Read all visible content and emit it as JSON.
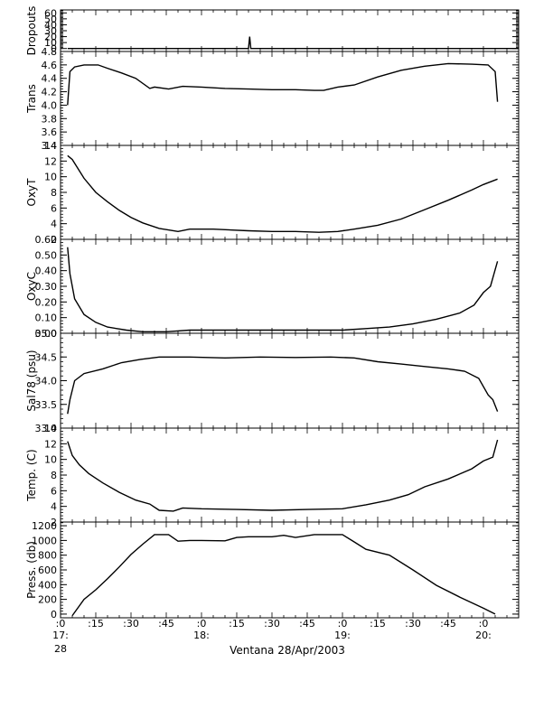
{
  "figure": {
    "x_title": "Ventana 28/Apr/2003"
  },
  "x_axis": {
    "range_minutes": [
      0,
      195
    ],
    "minor_step": 5,
    "ticks": [
      {
        "t": 0,
        "label": ":0"
      },
      {
        "t": 15,
        "label": ":15"
      },
      {
        "t": 30,
        "label": ":30"
      },
      {
        "t": 45,
        "label": ":45"
      },
      {
        "t": 60,
        "label": ":0"
      },
      {
        "t": 75,
        "label": ":15"
      },
      {
        "t": 90,
        "label": ":30"
      },
      {
        "t": 105,
        "label": ":45"
      },
      {
        "t": 120,
        "label": ":0"
      },
      {
        "t": 135,
        "label": ":15"
      },
      {
        "t": 150,
        "label": ":30"
      },
      {
        "t": 165,
        "label": ":45"
      },
      {
        "t": 180,
        "label": ":0"
      }
    ],
    "hour_labels": [
      {
        "t": 0,
        "label": "17:"
      },
      {
        "t": 60,
        "label": "18:"
      },
      {
        "t": 120,
        "label": "19:"
      },
      {
        "t": 180,
        "label": "20:"
      }
    ],
    "day_label": {
      "t": 0,
      "label": "28"
    }
  },
  "colors": {
    "data_line": "#000000",
    "raw_line": "#e00000",
    "axis": "#000000"
  },
  "chart_data": [
    {
      "type": "line",
      "ylabel": "Dropouts",
      "ylim": [
        -5,
        65
      ],
      "yticks": [
        "60",
        "50",
        "40",
        "30",
        "20",
        "10",
        "0"
      ],
      "ytick_values": [
        60,
        50,
        40,
        30,
        20,
        10,
        0
      ],
      "series": [
        {
          "values": [
            [
              3,
              0
            ],
            [
              80,
              0
            ],
            [
              80.5,
              20
            ],
            [
              81,
              0
            ],
            [
              195,
              0
            ]
          ]
        }
      ]
    },
    {
      "type": "line",
      "ylabel": "Trans",
      "ylim": [
        3.4,
        4.8
      ],
      "yticks": [
        "4.8",
        "4.6",
        "4.4",
        "4.2",
        "4.0",
        "3.8",
        "3.6",
        "3.4"
      ],
      "ytick_values": [
        4.8,
        4.6,
        4.4,
        4.2,
        4.0,
        3.8,
        3.6,
        3.4
      ],
      "series": [
        {
          "values": [
            [
              3,
              4.0
            ],
            [
              4,
              4.5
            ],
            [
              6,
              4.57
            ],
            [
              10,
              4.6
            ],
            [
              16,
              4.6
            ],
            [
              20,
              4.55
            ],
            [
              26,
              4.48
            ],
            [
              32,
              4.4
            ],
            [
              38,
              4.25
            ],
            [
              40,
              4.27
            ],
            [
              46,
              4.24
            ],
            [
              52,
              4.28
            ],
            [
              60,
              4.27
            ],
            [
              70,
              4.25
            ],
            [
              80,
              4.24
            ],
            [
              90,
              4.23
            ],
            [
              100,
              4.23
            ],
            [
              108,
              4.22
            ],
            [
              112,
              4.22
            ],
            [
              118,
              4.27
            ],
            [
              125,
              4.3
            ],
            [
              135,
              4.42
            ],
            [
              145,
              4.52
            ],
            [
              155,
              4.58
            ],
            [
              165,
              4.62
            ],
            [
              175,
              4.61
            ],
            [
              182,
              4.6
            ],
            [
              185,
              4.5
            ],
            [
              186,
              4.05
            ]
          ]
        }
      ]
    },
    {
      "type": "line",
      "ylabel": "OxyT",
      "ylim": [
        2,
        14
      ],
      "yticks": [
        "14",
        "12",
        "10",
        "8",
        "6",
        "4",
        "2"
      ],
      "ytick_values": [
        14,
        12,
        10,
        8,
        6,
        4,
        2
      ],
      "series": [
        {
          "values": [
            [
              3,
              12.7
            ],
            [
              5,
              12.2
            ],
            [
              10,
              9.8
            ],
            [
              15,
              8.0
            ],
            [
              20,
              6.8
            ],
            [
              25,
              5.7
            ],
            [
              30,
              4.8
            ],
            [
              35,
              4.1
            ],
            [
              42,
              3.4
            ],
            [
              50,
              3.0
            ],
            [
              55,
              3.3
            ],
            [
              65,
              3.3
            ],
            [
              80,
              3.1
            ],
            [
              90,
              3.0
            ],
            [
              100,
              3.0
            ],
            [
              110,
              2.9
            ],
            [
              118,
              3.0
            ],
            [
              125,
              3.3
            ],
            [
              135,
              3.8
            ],
            [
              145,
              4.6
            ],
            [
              155,
              5.8
            ],
            [
              165,
              7.0
            ],
            [
              175,
              8.3
            ],
            [
              180,
              9.0
            ],
            [
              186,
              9.7
            ]
          ]
        }
      ]
    },
    {
      "type": "line",
      "ylabel": "OxyC",
      "ylim": [
        0,
        0.6
      ],
      "yticks": [
        "0.60",
        "0.50",
        "0.40",
        "0.30",
        "0.20",
        "0.10",
        "0.00"
      ],
      "ytick_values": [
        0.6,
        0.5,
        0.4,
        0.3,
        0.2,
        0.1,
        0.0
      ],
      "series": [
        {
          "values": [
            [
              3,
              0.55
            ],
            [
              4,
              0.38
            ],
            [
              6,
              0.22
            ],
            [
              10,
              0.12
            ],
            [
              15,
              0.07
            ],
            [
              20,
              0.04
            ],
            [
              28,
              0.02
            ],
            [
              35,
              0.01
            ],
            [
              45,
              0.01
            ],
            [
              55,
              0.02
            ],
            [
              70,
              0.02
            ],
            [
              90,
              0.02
            ],
            [
              110,
              0.02
            ],
            [
              120,
              0.02
            ],
            [
              130,
              0.03
            ],
            [
              140,
              0.04
            ],
            [
              150,
              0.06
            ],
            [
              160,
              0.09
            ],
            [
              170,
              0.13
            ],
            [
              176,
              0.18
            ],
            [
              180,
              0.26
            ],
            [
              183,
              0.3
            ],
            [
              186,
              0.46
            ]
          ]
        }
      ]
    },
    {
      "type": "line",
      "ylabel": "Sal78 (psu)",
      "ylim": [
        33.0,
        35.0
      ],
      "yticks": [
        "35.0",
        "34.5",
        "34.0",
        "33.5",
        "33.0"
      ],
      "ytick_values": [
        35.0,
        34.5,
        34.0,
        33.5,
        33.0
      ],
      "series": [
        {
          "values": [
            [
              3,
              33.3
            ],
            [
              4,
              33.6
            ],
            [
              6,
              34.0
            ],
            [
              10,
              34.15
            ],
            [
              18,
              34.25
            ],
            [
              26,
              34.38
            ],
            [
              34,
              34.45
            ],
            [
              42,
              34.5
            ],
            [
              55,
              34.5
            ],
            [
              70,
              34.48
            ],
            [
              85,
              34.5
            ],
            [
              100,
              34.49
            ],
            [
              115,
              34.5
            ],
            [
              125,
              34.48
            ],
            [
              135,
              34.4
            ],
            [
              145,
              34.35
            ],
            [
              155,
              34.3
            ],
            [
              165,
              34.25
            ],
            [
              172,
              34.2
            ],
            [
              178,
              34.05
            ],
            [
              182,
              33.7
            ],
            [
              184,
              33.6
            ],
            [
              186,
              33.35
            ]
          ]
        }
      ]
    },
    {
      "type": "line",
      "ylabel": "Temp. (C)",
      "ylim": [
        2,
        14
      ],
      "yticks": [
        "14",
        "12",
        "10",
        "8",
        "6",
        "4",
        "2"
      ],
      "ytick_values": [
        14,
        12,
        10,
        8,
        6,
        4,
        2
      ],
      "series": [
        {
          "values": [
            [
              3,
              12.3
            ],
            [
              5,
              10.5
            ],
            [
              8,
              9.3
            ],
            [
              12,
              8.2
            ],
            [
              18,
              7.0
            ],
            [
              25,
              5.8
            ],
            [
              32,
              4.8
            ],
            [
              38,
              4.3
            ],
            [
              42,
              3.5
            ],
            [
              48,
              3.4
            ],
            [
              52,
              3.8
            ],
            [
              60,
              3.7
            ],
            [
              75,
              3.6
            ],
            [
              90,
              3.5
            ],
            [
              105,
              3.6
            ],
            [
              120,
              3.7
            ],
            [
              130,
              4.2
            ],
            [
              140,
              4.8
            ],
            [
              148,
              5.5
            ],
            [
              155,
              6.5
            ],
            [
              165,
              7.5
            ],
            [
              175,
              8.8
            ],
            [
              180,
              9.8
            ],
            [
              184,
              10.3
            ],
            [
              186,
              12.5
            ]
          ]
        }
      ]
    },
    {
      "type": "line",
      "ylabel": "Press. (db)",
      "ylim": [
        -50,
        1250
      ],
      "yticks": [
        "1200",
        "1000",
        "800",
        "600",
        "400",
        "200",
        "0"
      ],
      "ytick_values": [
        1200,
        1000,
        800,
        600,
        400,
        200,
        0
      ],
      "series": [
        {
          "values": [
            [
              5,
              -20
            ],
            [
              10,
              200
            ],
            [
              15,
              330
            ],
            [
              20,
              480
            ],
            [
              25,
              640
            ],
            [
              30,
              810
            ],
            [
              35,
              950
            ],
            [
              40,
              1080
            ],
            [
              46,
              1080
            ],
            [
              50,
              990
            ],
            [
              55,
              1000
            ],
            [
              60,
              1000
            ],
            [
              70,
              995
            ],
            [
              75,
              1040
            ],
            [
              80,
              1050
            ],
            [
              90,
              1050
            ],
            [
              95,
              1070
            ],
            [
              100,
              1040
            ],
            [
              108,
              1080
            ],
            [
              120,
              1080
            ],
            [
              125,
              980
            ],
            [
              130,
              880
            ],
            [
              140,
              800
            ],
            [
              150,
              600
            ],
            [
              160,
              390
            ],
            [
              170,
              230
            ],
            [
              180,
              80
            ],
            [
              185,
              0
            ]
          ]
        }
      ]
    }
  ]
}
